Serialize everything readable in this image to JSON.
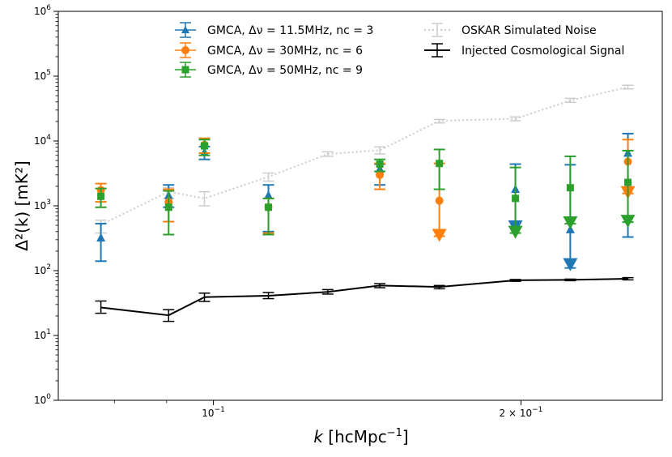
{
  "chart_data": {
    "type": "scatter",
    "xscale": "log",
    "yscale": "log",
    "xlim": [
      0.0705,
      0.275
    ],
    "ylim": [
      1,
      1000000
    ],
    "xlabel": {
      "prefix": "k",
      "text": " [hcMpc",
      "sup": "−1",
      "suffix": "]"
    },
    "ylabel": {
      "text": "Δ²(k) [mK²]"
    },
    "x_ticks": [
      {
        "value": 0.1,
        "base": "10",
        "exp": "−1"
      },
      {
        "value": 0.2,
        "base": "2 × 10",
        "exp": "−1"
      }
    ],
    "y_ticks": [
      {
        "value": 1,
        "base": "10",
        "exp": "0"
      },
      {
        "value": 10,
        "base": "10",
        "exp": "1"
      },
      {
        "value": 100,
        "base": "10",
        "exp": "2"
      },
      {
        "value": 1000,
        "base": "10",
        "exp": "3"
      },
      {
        "value": 10000,
        "base": "10",
        "exp": "4"
      },
      {
        "value": 100000,
        "base": "10",
        "exp": "5"
      },
      {
        "value": 1000000,
        "base": "10",
        "exp": "6"
      }
    ],
    "series": [
      {
        "name": "OSKAR Simulated Noise",
        "color": "#cccccc",
        "style": "dotted-line",
        "x": [
          0.0776,
          0.0904,
          0.098,
          0.1132,
          0.1294,
          0.1455,
          0.1664,
          0.1975,
          0.2235,
          0.2545
        ],
        "y": [
          510,
          1650,
          1300,
          2800,
          6300,
          7200,
          20500,
          22000,
          42000,
          68000
        ],
        "err_low": [
          380,
          1300,
          1000,
          2400,
          5800,
          6300,
          19000,
          20500,
          39500,
          63500
        ],
        "err_high": [
          600,
          1900,
          1650,
          3200,
          6800,
          8100,
          21500,
          23500,
          45500,
          72500
        ]
      },
      {
        "name": "Injected Cosmological Signal",
        "color": "#000000",
        "style": "solid-line",
        "x": [
          0.0776,
          0.0904,
          0.098,
          0.1132,
          0.1294,
          0.1455,
          0.1664,
          0.1975,
          0.2235,
          0.2545
        ],
        "y": [
          27,
          20.5,
          39,
          41,
          47,
          59,
          56,
          71,
          72,
          75
        ],
        "err_low": [
          22,
          16.5,
          33.5,
          37,
          43.5,
          54.5,
          52.5,
          68.5,
          70,
          72
        ],
        "err_high": [
          34,
          25,
          45,
          46,
          51,
          63,
          59,
          73,
          74,
          78
        ]
      },
      {
        "name": "GMCA, Δν = 11.5MHz, nc = 3",
        "color": "#1f77b4",
        "marker": "triangle-up",
        "x": [
          0.0776,
          0.0904,
          0.098,
          0.1132,
          0.1455,
          0.1664,
          0.1975,
          0.2235,
          0.2545
        ],
        "y": [
          320,
          1450,
          6700,
          1450,
          3700,
          null,
          1800,
          430,
          6500
        ],
        "err_low": [
          140,
          950,
          5200,
          400,
          2100,
          null,
          460,
          110,
          330
        ],
        "err_high": [
          530,
          2100,
          8200,
          2100,
          4400,
          null,
          4400,
          4300,
          13000
        ],
        "upper_limit_at": [
          null,
          null,
          null,
          null,
          null,
          null,
          460,
          120,
          null
        ]
      },
      {
        "name": "GMCA, Δν = 30MHz, nc = 6",
        "color": "#ff7f0e",
        "marker": "circle",
        "x": [
          0.0776,
          0.0904,
          0.098,
          0.1132,
          0.1455,
          0.1664,
          0.1975,
          0.2235,
          0.2545
        ],
        "y": [
          1750,
          1150,
          8700,
          950,
          3000,
          1200,
          null,
          null,
          4800
        ],
        "err_low": [
          1150,
          570,
          6500,
          380,
          1800,
          340,
          null,
          null,
          1550
        ],
        "err_high": [
          2200,
          1800,
          11000,
          1300,
          4500,
          4500,
          null,
          null,
          10500
        ],
        "upper_limit_at": [
          null,
          null,
          null,
          null,
          null,
          340,
          null,
          null,
          1550
        ]
      },
      {
        "name": "GMCA, Δν = 50MHz, nc = 9",
        "color": "#2ca02c",
        "marker": "square",
        "x": [
          0.0776,
          0.0904,
          0.098,
          0.1132,
          0.1455,
          0.1664,
          0.1975,
          0.2235,
          0.2545
        ],
        "y": [
          1400,
          950,
          8400,
          950,
          4400,
          4500,
          1300,
          1900,
          2300
        ],
        "err_low": [
          950,
          360,
          6000,
          360,
          3400,
          1800,
          380,
          530,
          560
        ],
        "err_high": [
          1850,
          1700,
          10500,
          1300,
          5200,
          7400,
          3900,
          5800,
          7100
        ],
        "upper_limit_at": [
          null,
          null,
          null,
          null,
          null,
          null,
          380,
          530,
          560
        ]
      }
    ],
    "legend": {
      "placement": "top",
      "entries": [
        "GMCA, Δν = 11.5MHz, nc = 3",
        "GMCA, Δν = 30MHz, nc = 6",
        "GMCA, Δν = 50MHz, nc = 9",
        "OSKAR Simulated Noise",
        "Injected Cosmological Signal"
      ]
    }
  }
}
